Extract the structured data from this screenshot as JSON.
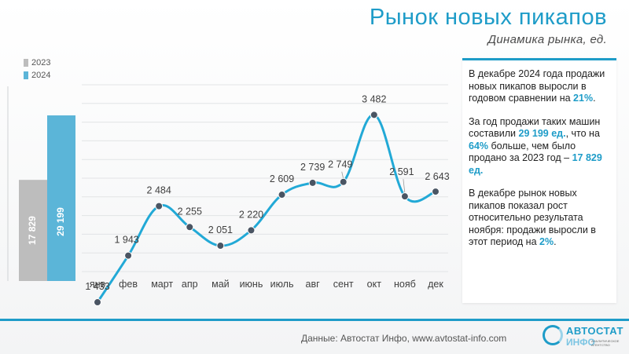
{
  "header": {
    "title": "Рынок новых пикапов",
    "subtitle": "Динамика рынка, ед."
  },
  "legend": {
    "prev_year": "2023",
    "curr_year": "2024"
  },
  "annual_bars": {
    "prev_value": 17829,
    "prev_label": "17 829",
    "curr_value": 29199,
    "curr_label": "29 199"
  },
  "chart_data": {
    "type": "line",
    "categories": [
      "янв",
      "фев",
      "март",
      "апр",
      "май",
      "июнь",
      "июль",
      "авг",
      "сент",
      "окт",
      "нояб",
      "дек"
    ],
    "series": [
      {
        "name": "2024",
        "values": [
          1433,
          1943,
          2484,
          2255,
          2051,
          2220,
          2609,
          2739,
          2749,
          3482,
          2591,
          2643
        ]
      }
    ],
    "value_labels": [
      "1 433",
      "1 943",
      "2 484",
      "2 255",
      "2 051",
      "2 220",
      "2 609",
      "2 739",
      "2 749",
      "3 482",
      "2 591",
      "2 643"
    ],
    "grid": true,
    "ylim": [
      0,
      4000
    ]
  },
  "panel": {
    "p1_a": "В декабре 2024 года продажи новых пикапов выросли в годовом сравнении на ",
    "p1_hl": "21%",
    "p1_b": ".",
    "p2_a": "За год продажи таких машин составили ",
    "p2_hl1": "29 199 ед.",
    "p2_b": ", что на ",
    "p2_hl2": "64%",
    "p2_c": " больше, чем было продано за 2023 год – ",
    "p2_hl3": "17 829 ед.",
    "p3_a": "В декабре рынок новых пикапов показал рост относительно результата ноября: продажи выросли в этот период на ",
    "p3_hl": "2%",
    "p3_b": "."
  },
  "footer": {
    "source": "Данные: Автостат Инфо, www.avtostat-info.com",
    "logo_top": "АВТОСТАТ",
    "logo_bottom": "ИНФО",
    "logo_small": "АНАЛИТИЧЕСКОЕ АГЕНТСТВО"
  },
  "colors": {
    "accent": "#1e9cc8",
    "line": "#22a9d6",
    "bar_prev": "#bdbdbd",
    "bar_curr": "#5bb5d8",
    "marker": "#4a5563"
  }
}
